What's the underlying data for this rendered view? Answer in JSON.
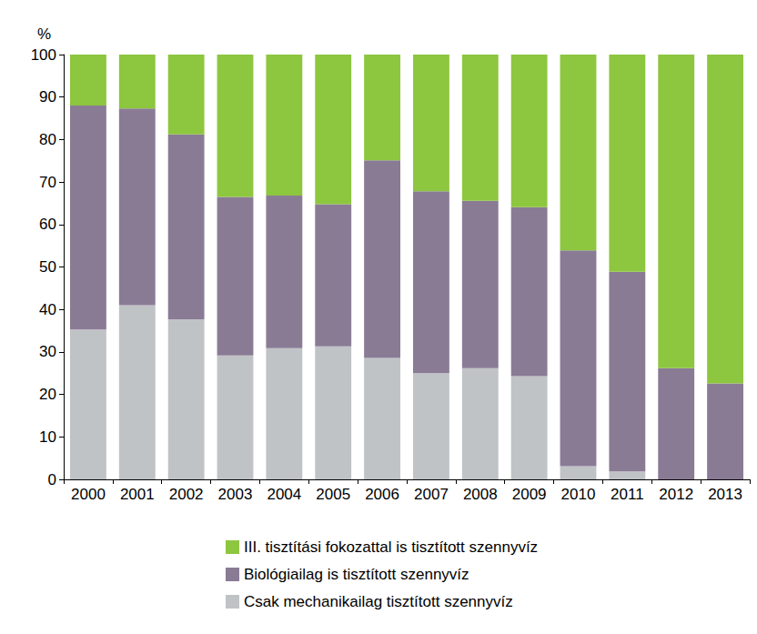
{
  "chart_data": {
    "type": "bar",
    "stacked": true,
    "y_label": "%",
    "categories": [
      "2000",
      "2001",
      "2002",
      "2003",
      "2004",
      "2005",
      "2006",
      "2007",
      "2008",
      "2009",
      "2010",
      "2011",
      "2012",
      "2013"
    ],
    "series": [
      {
        "name": "Csak mechanikailag tisztított szennyvíz",
        "color": "#c0c3c6",
        "values": [
          35.3,
          41,
          37.7,
          29.2,
          30.9,
          31.3,
          28.6,
          25,
          26.2,
          24.3,
          3.1,
          1.9,
          0,
          0
        ]
      },
      {
        "name": "Biológiailag is tisztított szennyvíz",
        "color": "#8a7b95",
        "values": [
          52.7,
          46.3,
          43.5,
          37.3,
          35.9,
          33.5,
          46.5,
          42.8,
          39.4,
          39.8,
          50.8,
          47,
          26.2,
          22.6
        ]
      },
      {
        "name": "III. tisztítási fokozattal is tisztított szennyvíz",
        "color": "#8dc63f",
        "values": [
          12,
          12.7,
          18.8,
          33.5,
          33.2,
          35.2,
          24.9,
          32.2,
          34.4,
          35.9,
          46.1,
          51.1,
          73.8,
          77.4
        ]
      }
    ],
    "ylim": [
      0,
      100
    ],
    "yticks": [
      0,
      10,
      20,
      30,
      40,
      50,
      60,
      70,
      80,
      90,
      100
    ],
    "grid": false,
    "legend": "bottom"
  }
}
